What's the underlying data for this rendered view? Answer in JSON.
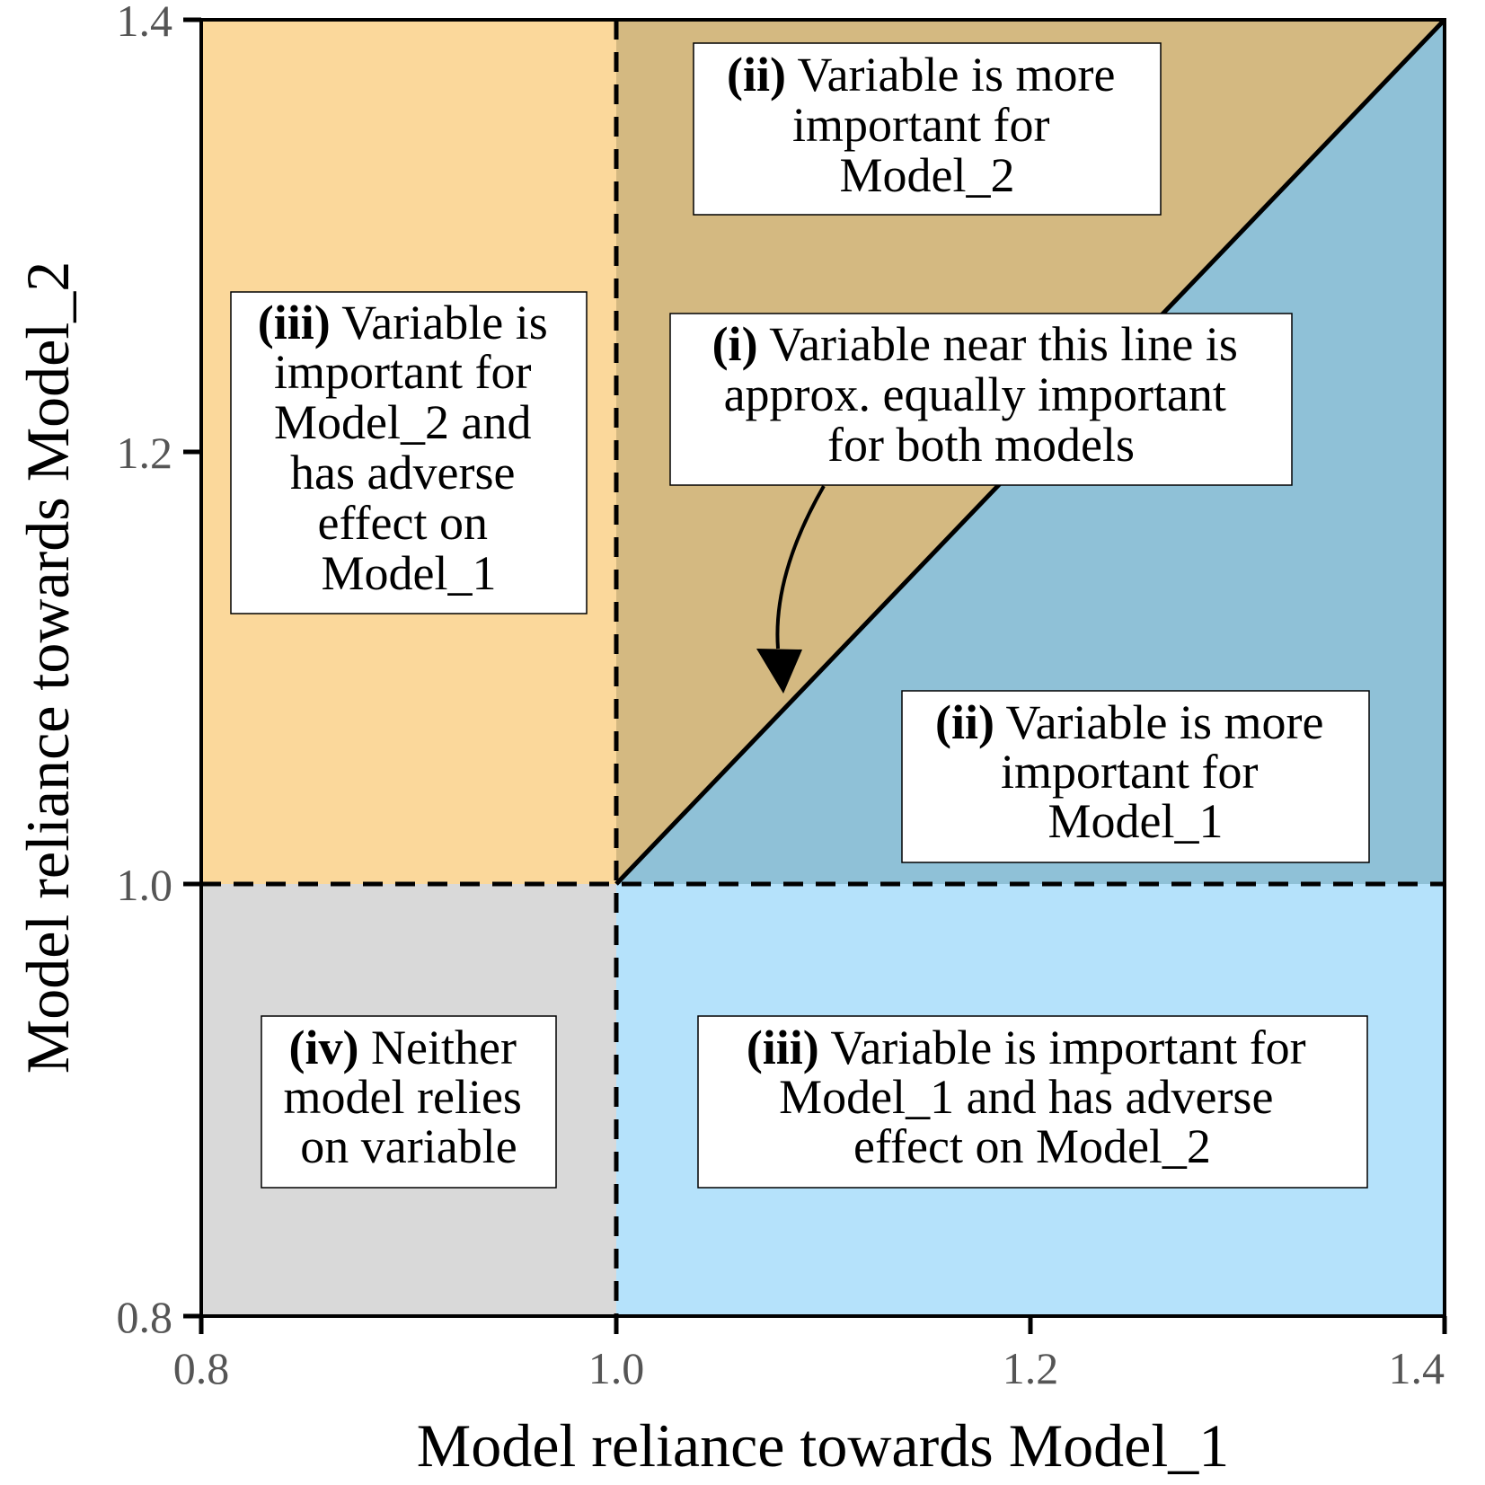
{
  "diagram": {
    "x_axis": {
      "label": "Model reliance towards Model_1",
      "range": [
        0.8,
        1.4
      ],
      "ticks": [
        "0.8",
        "1.0",
        "1.2",
        "1.4"
      ]
    },
    "y_axis": {
      "label": "Model reliance towards Model_2",
      "range": [
        0.8,
        1.4
      ],
      "ticks": [
        "0.8",
        "1.0",
        "1.2",
        "1.4"
      ]
    },
    "regions": [
      {
        "id": "upper-left",
        "color": "#FBD89B"
      },
      {
        "id": "upper-triangle",
        "color": "#D4B981"
      },
      {
        "id": "lower-triangle",
        "color": "#8FC1D7"
      },
      {
        "id": "lower-right",
        "color": "#B5E2FB"
      },
      {
        "id": "lower-left",
        "color": "#D9D9D9"
      }
    ],
    "annotations": [
      {
        "id": "ii-model2",
        "tag": "(ii)",
        "lines": [
          " Variable is more",
          "important for",
          "Model_2"
        ]
      },
      {
        "id": "iii-model2",
        "tag": "(iii)",
        "lines": [
          " Variable is",
          "important for",
          "Model_2 and",
          "has adverse",
          "effect on",
          "Model_1"
        ]
      },
      {
        "id": "i-equal",
        "tag": "(i)",
        "lines": [
          " Variable near this line is",
          "approx. equally important",
          "for both models"
        ]
      },
      {
        "id": "ii-model1",
        "tag": "(ii)",
        "lines": [
          " Variable is more",
          "important for",
          "Model_1"
        ]
      },
      {
        "id": "iv-neither",
        "tag": "(iv)",
        "lines": [
          " Neither",
          "model relies",
          "on variable"
        ]
      },
      {
        "id": "iii-model1",
        "tag": "(iii)",
        "lines": [
          " Variable is important for",
          "Model_1 and has adverse",
          "effect on Model_2"
        ]
      }
    ]
  }
}
